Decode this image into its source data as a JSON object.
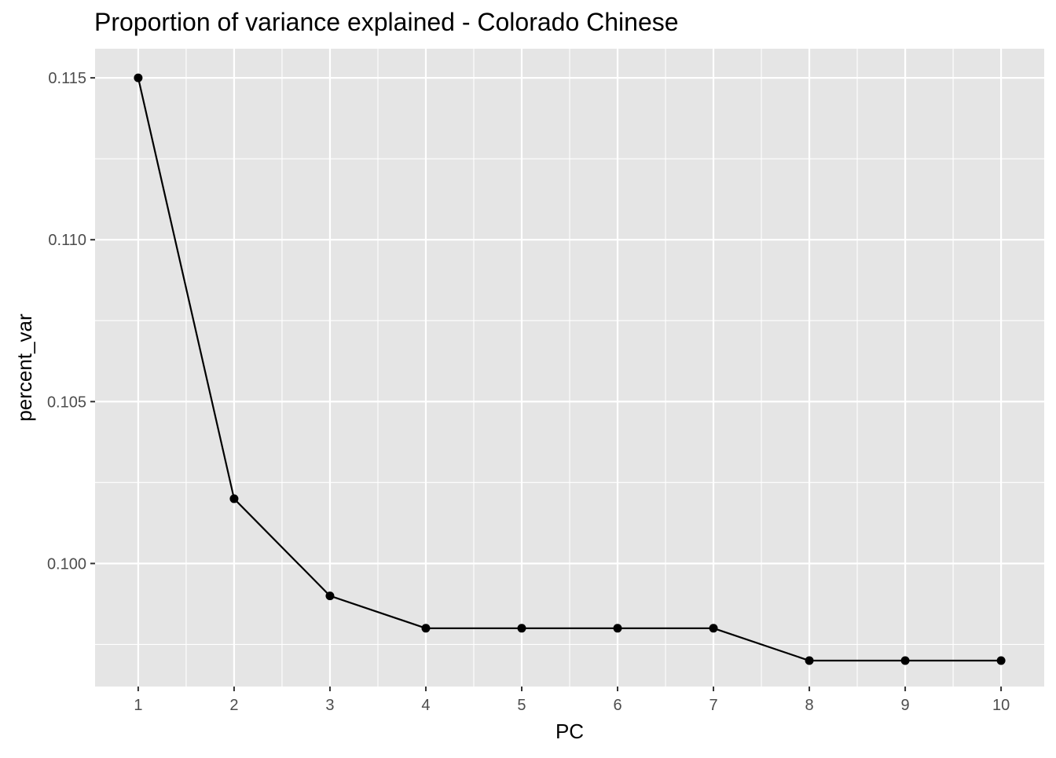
{
  "chart_data": {
    "type": "line",
    "title": "Proportion of variance explained - Colorado Chinese",
    "xlabel": "PC",
    "ylabel": "percent_var",
    "x": [
      1,
      2,
      3,
      4,
      5,
      6,
      7,
      8,
      9,
      10
    ],
    "series": [
      {
        "values": [
          0.115,
          0.102,
          0.099,
          0.098,
          0.098,
          0.098,
          0.098,
          0.097,
          0.097,
          0.097
        ]
      }
    ],
    "xticks": [
      "1",
      "2",
      "3",
      "4",
      "5",
      "6",
      "7",
      "8",
      "9",
      "10"
    ],
    "yticks": [
      {
        "value": 0.1,
        "label": "0.100"
      },
      {
        "value": 0.105,
        "label": "0.105"
      },
      {
        "value": 0.11,
        "label": "0.110"
      },
      {
        "value": 0.115,
        "label": "0.115"
      }
    ],
    "xlim": [
      0.55,
      10.45
    ],
    "ylim": [
      0.0962,
      0.1159
    ],
    "grid": true,
    "legend": "none",
    "colors": {
      "panel_background": "#e5e5e5",
      "grid": "#ffffff",
      "line": "#000000",
      "points": "#000000",
      "tick_text": "#4d4d4d"
    }
  }
}
